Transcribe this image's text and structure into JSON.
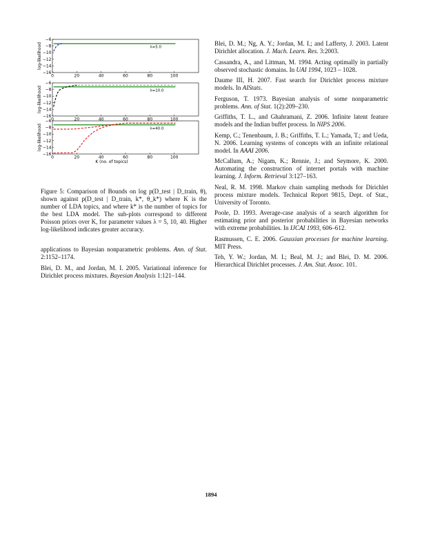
{
  "chart_data": [
    {
      "type": "line",
      "ylabel": "log-likelihood",
      "annotation": "λ=5.0",
      "xlim": [
        0,
        120
      ],
      "ylim": [
        -16,
        -6
      ],
      "xticks": [
        "0",
        "20",
        "40",
        "60",
        "80",
        "100"
      ],
      "yticks": [
        "−6",
        "−8",
        "−10",
        "−12",
        "−14",
        "−16"
      ],
      "series": [
        {
          "color": "#1a8a1a",
          "style": "solid",
          "x": [
            1,
            101
          ],
          "y": [
            -7.3,
            -7.3
          ]
        },
        {
          "color": "#2233aa",
          "style": "dashed",
          "x": [
            1,
            2,
            3,
            4,
            5,
            6,
            8
          ],
          "y": [
            -9.6,
            -8.8,
            -8.2,
            -7.8,
            -7.6,
            -7.4,
            -7.3
          ]
        }
      ]
    },
    {
      "type": "line",
      "ylabel": "log-likelihood",
      "annotation": "λ=10.0",
      "xlim": [
        0,
        120
      ],
      "ylim": [
        -16,
        -6
      ],
      "xticks": [
        "0",
        "20",
        "40",
        "60",
        "80",
        "100"
      ],
      "yticks": [
        "−6",
        "−8",
        "−10",
        "−12",
        "−14",
        "−16"
      ],
      "series": [
        {
          "color": "#999999",
          "style": "dashed",
          "x": [
            18,
            101
          ],
          "y": [
            -6.7,
            -6.7
          ]
        },
        {
          "color": "#1a8a1a",
          "style": "solid",
          "x": [
            1,
            101
          ],
          "y": [
            -7.2,
            -7.2
          ]
        },
        {
          "color": "#111111",
          "style": "dashed",
          "x": [
            1,
            2,
            3,
            4,
            5,
            6,
            8,
            10,
            13,
            16,
            20
          ],
          "y": [
            -13.2,
            -11.5,
            -10.2,
            -9.2,
            -8.5,
            -8.1,
            -7.7,
            -7.4,
            -7.1,
            -6.9,
            -6.7
          ]
        }
      ]
    },
    {
      "type": "line",
      "ylabel": "log-likelihood",
      "xlabel": "K (no. of topics)",
      "annotation": "λ=40.0",
      "xlim": [
        0,
        120
      ],
      "ylim": [
        -16,
        -6
      ],
      "xticks": [
        "0",
        "20",
        "40",
        "60",
        "80",
        "100"
      ],
      "yticks": [
        "−6",
        "−8",
        "−10",
        "−12",
        "−14",
        "−16"
      ],
      "series": [
        {
          "color": "#1a8a1a",
          "style": "solid",
          "x": [
            1,
            101
          ],
          "y": [
            -7.2,
            -7.2
          ]
        },
        {
          "color": "#dd2222",
          "style": "dashed",
          "x": [
            1,
            15,
            20,
            25,
            30,
            35,
            40,
            45,
            50,
            55,
            60,
            70,
            101
          ],
          "y": [
            -8.5,
            -8.5,
            -8.4,
            -8.2,
            -8.0,
            -7.8,
            -7.5,
            -7.3,
            -7.1,
            -6.9,
            -6.7,
            -6.7,
            -6.7
          ]
        },
        {
          "color": "#dd2222",
          "style": "dashed",
          "x": [
            1,
            17,
            20,
            23,
            26,
            30,
            34,
            38,
            42,
            46,
            50,
            55,
            60,
            70,
            101
          ],
          "y": [
            -15.7,
            -15.6,
            -14.9,
            -13.5,
            -12.0,
            -10.5,
            -9.3,
            -8.5,
            -7.9,
            -7.5,
            -7.2,
            -6.9,
            -6.7,
            -6.7,
            -6.7
          ]
        }
      ]
    }
  ],
  "caption": "Figure 5: Comparison of Bounds on log p(D_test | D_train, θ), shown against p(D_test | D_train, k*, θ_k*) where K is the number of LDA topics, and where k* is the number of topics for the best LDA model. The sub-plots correspond to different Poisson priors over K, for parameter values λ = 5, 10, 40. Higher log-likelihood indicates greater accuracy.",
  "left_refs": [
    {
      "text": "applications to Bayesian nonparametric problems. ",
      "venue": "Ann. of Stat.",
      "tail": " 2:1152–1174."
    },
    {
      "text": "Blei, D. M., and Jordan, M. I. 2005. Variational inference for Dirichlet process mixtures. ",
      "venue": "Bayesian Analysis",
      "tail": " 1:121–144."
    }
  ],
  "right_refs": [
    {
      "text": "Blei, D. M.; Ng, A. Y.; Jordan, M. I.; and Lafferty, J. 2003. Latent Dirichlet allocation. ",
      "venue": "J. Mach. Learn. Res.",
      "tail": " 3:2003."
    },
    {
      "text": "Cassandra, A., and Littman, M. 1994. Acting optimally in partially observed stochastic domains. In ",
      "venue": "UAI 1994",
      "tail": ", 1023 – 1028."
    },
    {
      "text": "Daume III, H. 2007. Fast search for Dirichlet process mixture models. In ",
      "venue": "AIStats",
      "tail": "."
    },
    {
      "text": "Ferguson, T. 1973. Bayesian analysis of some nonparametric problems. ",
      "venue": "Ann. of Stat.",
      "tail": " 1(2):209–230."
    },
    {
      "text": "Griffiths, T. L., and Ghahramani, Z. 2006. Infinite latent feature models and the Indian buffet process. In ",
      "venue": "NIPS 2006",
      "tail": "."
    },
    {
      "text": "Kemp, C.; Tenenbaum, J. B.; Griffiths, T. L.; Yamada, T.; and Ueda, N. 2006. Learning systems of concepts with an infinite relational model. In ",
      "venue": "AAAI 2006",
      "tail": "."
    },
    {
      "text": "McCallum, A.; Nigam, K.; Rennie, J.; and Seymore, K. 2000. Automating the construction of internet portals with machine learning. ",
      "venue": "J. Inform. Retrieval",
      "tail": " 3:127–163."
    },
    {
      "text": "Neal, R. M. 1998. Markov chain sampling methods for Dirichlet process mixture models. Technical Report 9815, Dept. of Stat., University of Toronto.",
      "venue": "",
      "tail": ""
    },
    {
      "text": "Poole, D. 1993. Average-case analysis of a search algorithm for estimating prior and posterior probabilities in Bayesian networks with extreme probabilities. In ",
      "venue": "IJCAI 1993",
      "tail": ", 606–612."
    },
    {
      "text": "Rasmussen, C. E. 2006. ",
      "venue": "Gaussian processes for machine learning",
      "tail": ". MIT Press."
    },
    {
      "text": "Teh, Y. W.; Jordan, M. I.; Beal, M. J.; and Blei, D. M. 2006. Hierarchical Dirichlet processes. ",
      "venue": "J. Am. Stat. Assoc.",
      "tail": " 101."
    }
  ],
  "page_number": "1894"
}
